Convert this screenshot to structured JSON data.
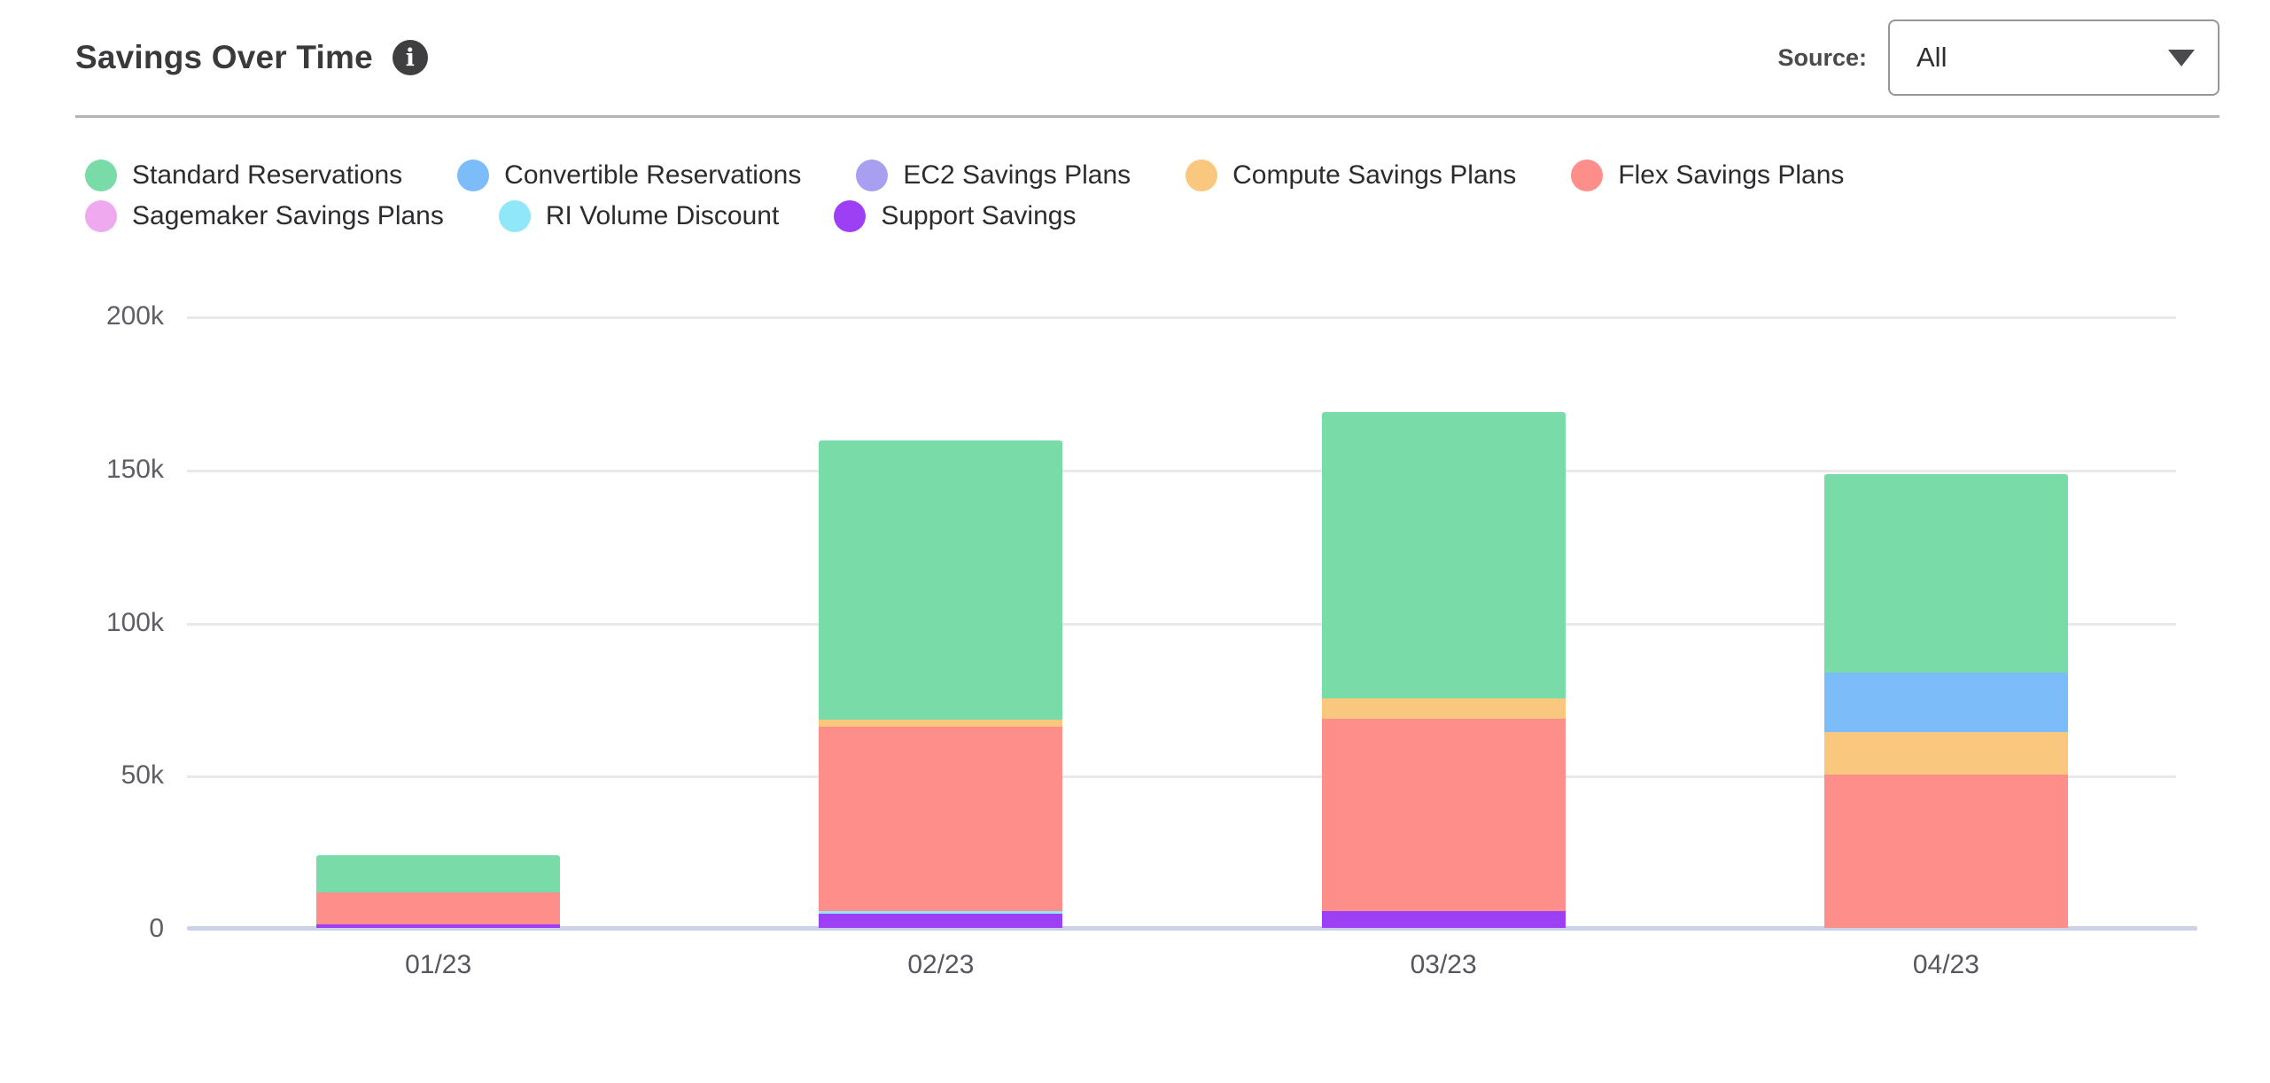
{
  "header": {
    "title": "Savings Over Time",
    "info_glyph": "i",
    "source_label": "Source:",
    "source_value": "All"
  },
  "chart_data": {
    "type": "bar",
    "stacked": true,
    "title": "Savings Over Time",
    "x": [
      "01/23",
      "02/23",
      "03/23",
      "04/23"
    ],
    "unit": "thousands",
    "ylim_k": [
      0,
      200
    ],
    "ytick_labels": [
      "0",
      "50k",
      "100k",
      "150k",
      "200k"
    ],
    "grid": "horizontal",
    "legend_position": "top-left",
    "series": [
      {
        "name": "Standard Reservations",
        "color": "#79dba8",
        "values_k": [
          12.2,
          91.2,
          93.7,
          64.9
        ]
      },
      {
        "name": "Convertible Reservations",
        "color": "#7cbcf9",
        "values_k": [
          0,
          0,
          0,
          19.4
        ]
      },
      {
        "name": "EC2 Savings Plans",
        "color": "#a89ff0",
        "values_k": [
          0,
          0,
          0,
          0
        ]
      },
      {
        "name": "Compute Savings Plans",
        "color": "#f9c77e",
        "values_k": [
          0,
          2.3,
          6.7,
          13.8
        ]
      },
      {
        "name": "Flex Savings Plans",
        "color": "#fd8e8a",
        "values_k": [
          10.3,
          60.1,
          62.7,
          50.1
        ]
      },
      {
        "name": "Sagemaker Savings Plans",
        "color": "#efa9ef",
        "values_k": [
          0,
          0,
          0,
          0
        ]
      },
      {
        "name": "RI Volume Discount",
        "color": "#8fe7f8",
        "values_k": [
          0,
          1.0,
          0,
          0
        ]
      },
      {
        "name": "Support Savings",
        "color": "#9d3ff5",
        "values_k": [
          1.3,
          4.6,
          5.5,
          0
        ]
      }
    ],
    "stack_order_bottom_to_top": [
      "Support Savings",
      "RI Volume Discount",
      "Sagemaker Savings Plans",
      "Flex Savings Plans",
      "Compute Savings Plans",
      "EC2 Savings Plans",
      "Convertible Reservations",
      "Standard Reservations"
    ],
    "legend_rows": [
      [
        "Standard Reservations",
        "Convertible Reservations",
        "EC2 Savings Plans",
        "Compute Savings Plans",
        "Flex Savings Plans"
      ],
      [
        "Sagemaker Savings Plans",
        "RI Volume Discount",
        "Support Savings"
      ]
    ],
    "totals_k": [
      23.8,
      159.2,
      168.6,
      148.2
    ]
  }
}
